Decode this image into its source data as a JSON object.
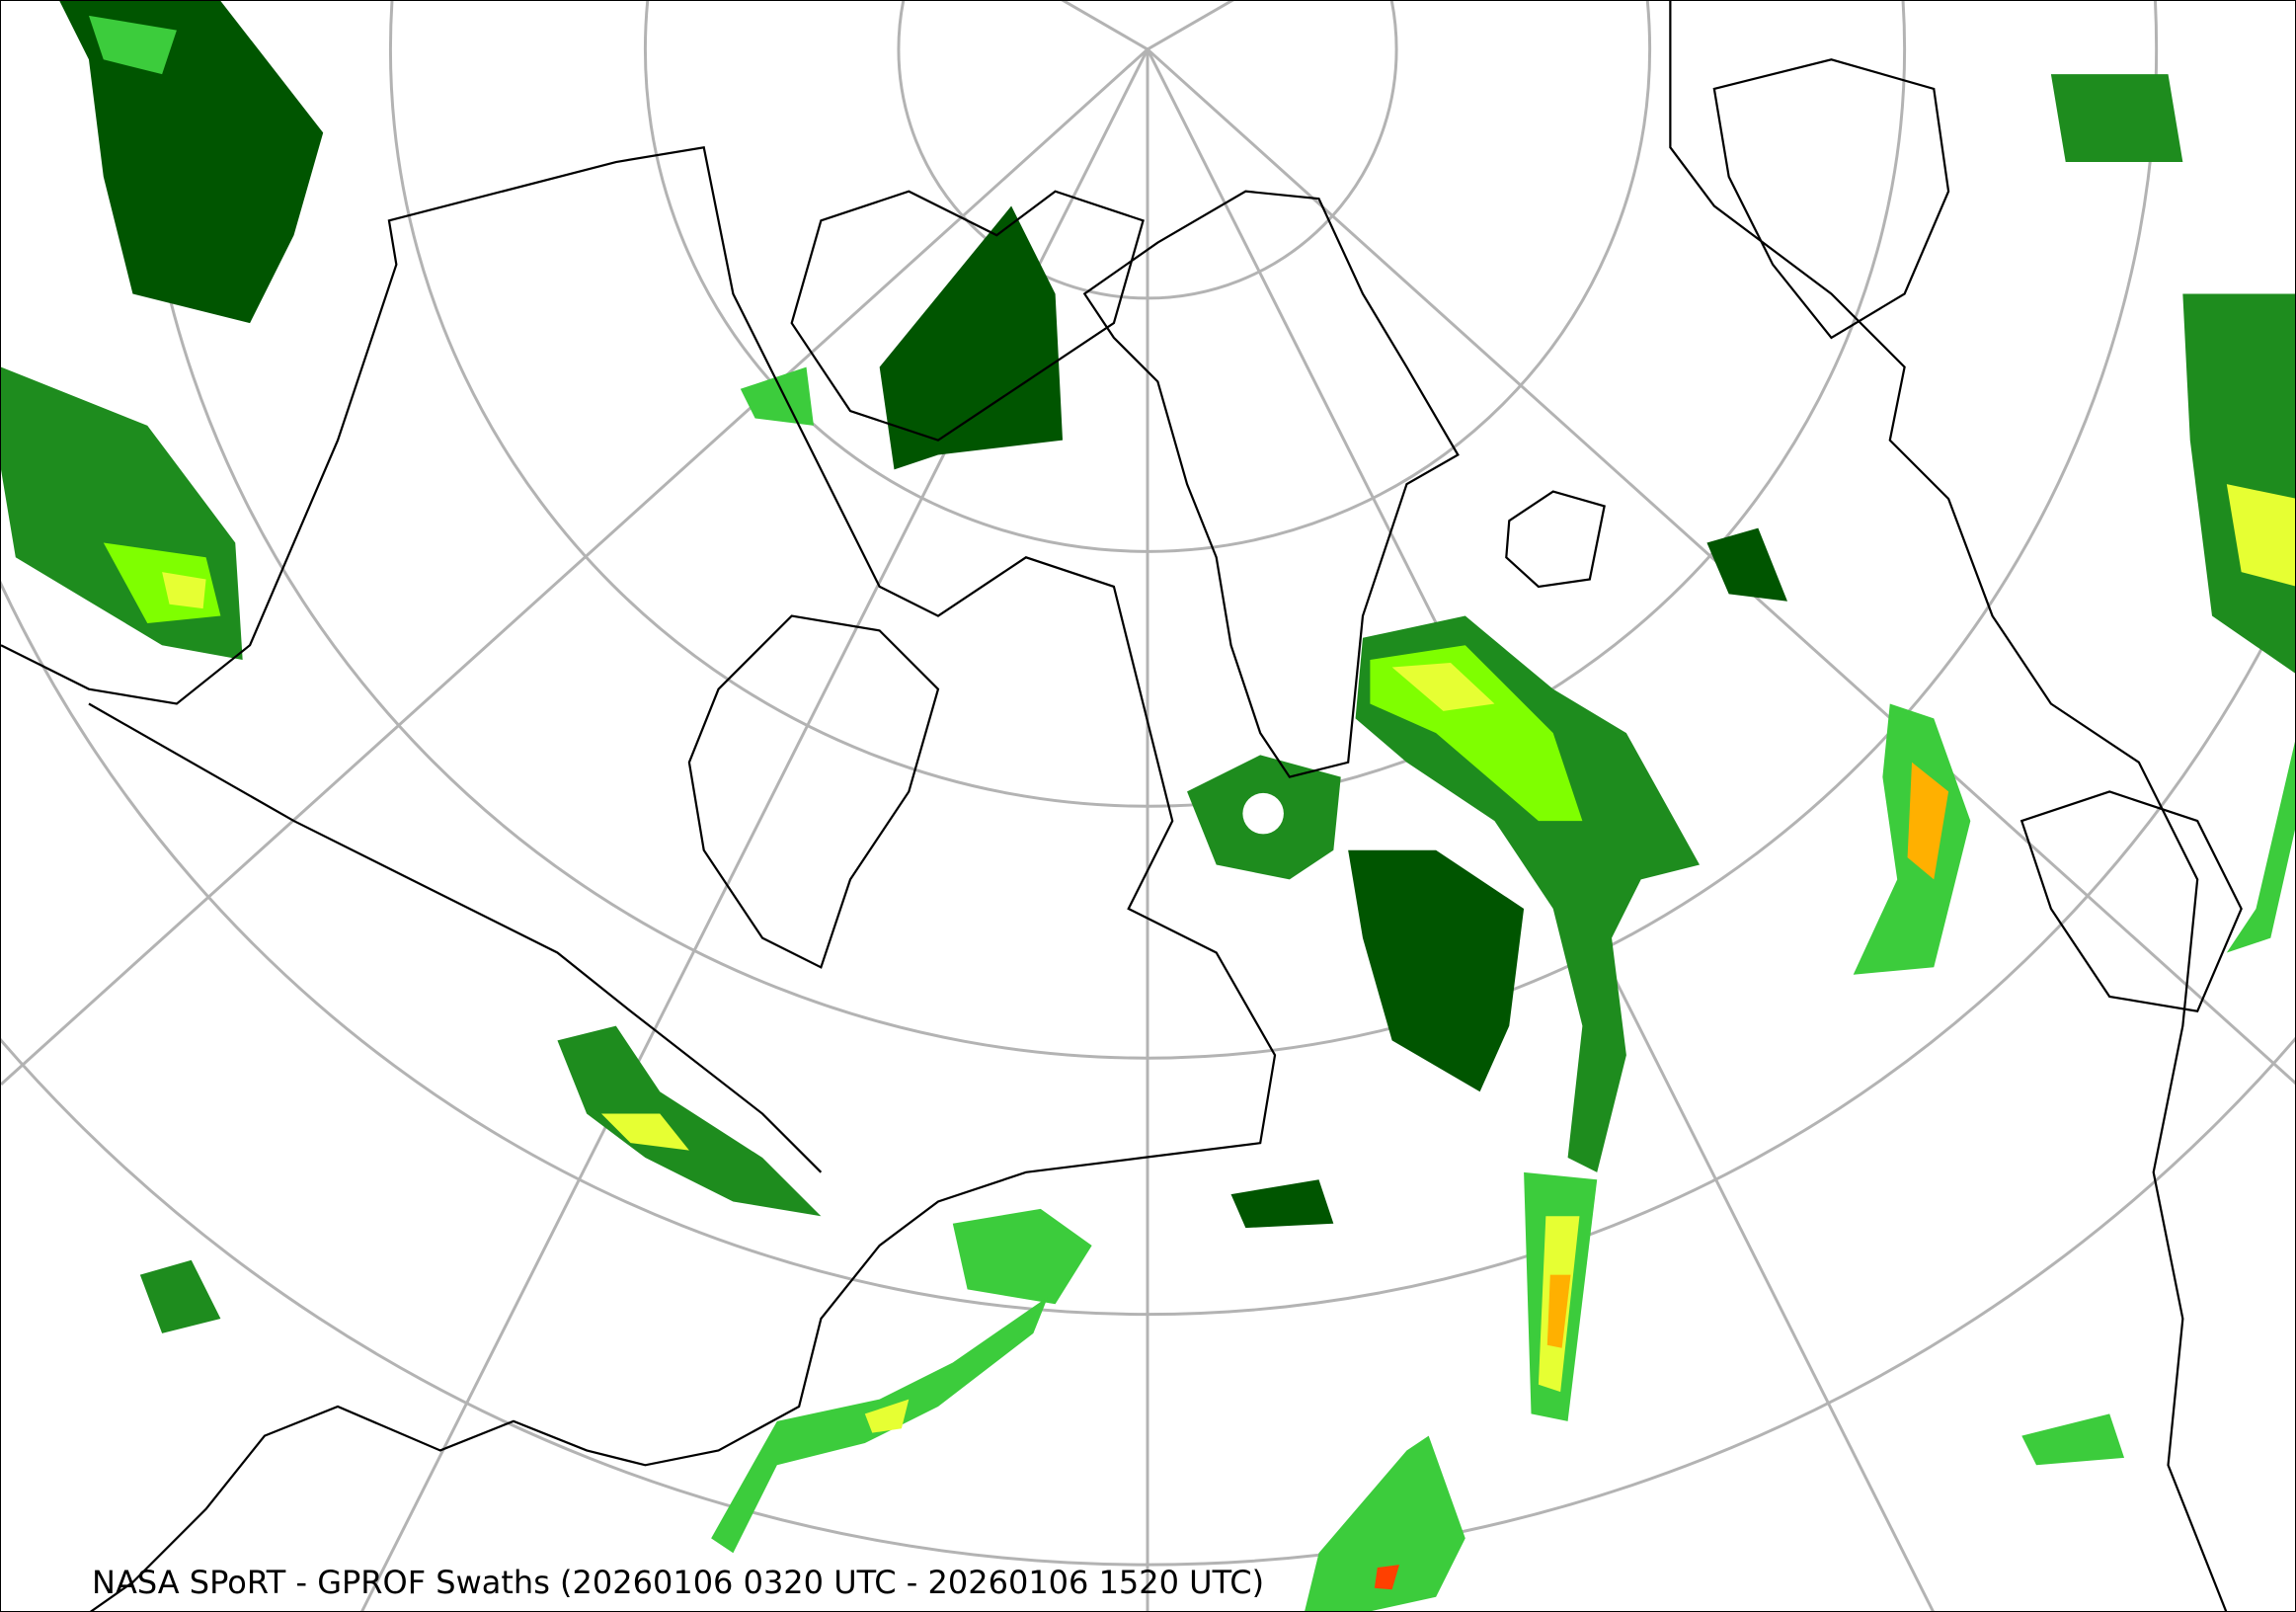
{
  "map": {
    "caption": "NASA SPoRT - GPROF Swaths (20260106 0320 UTC - 20260106 1520 UTC)",
    "projection": "polar stereographic",
    "graticule_color": "#b3b3b3",
    "coastline_color": "#000000",
    "precip_colors": [
      "#005500",
      "#1e8c1e",
      "#3ccc3c",
      "#7fff00",
      "#e6ff33",
      "#ffb000",
      "#ff4000"
    ]
  }
}
